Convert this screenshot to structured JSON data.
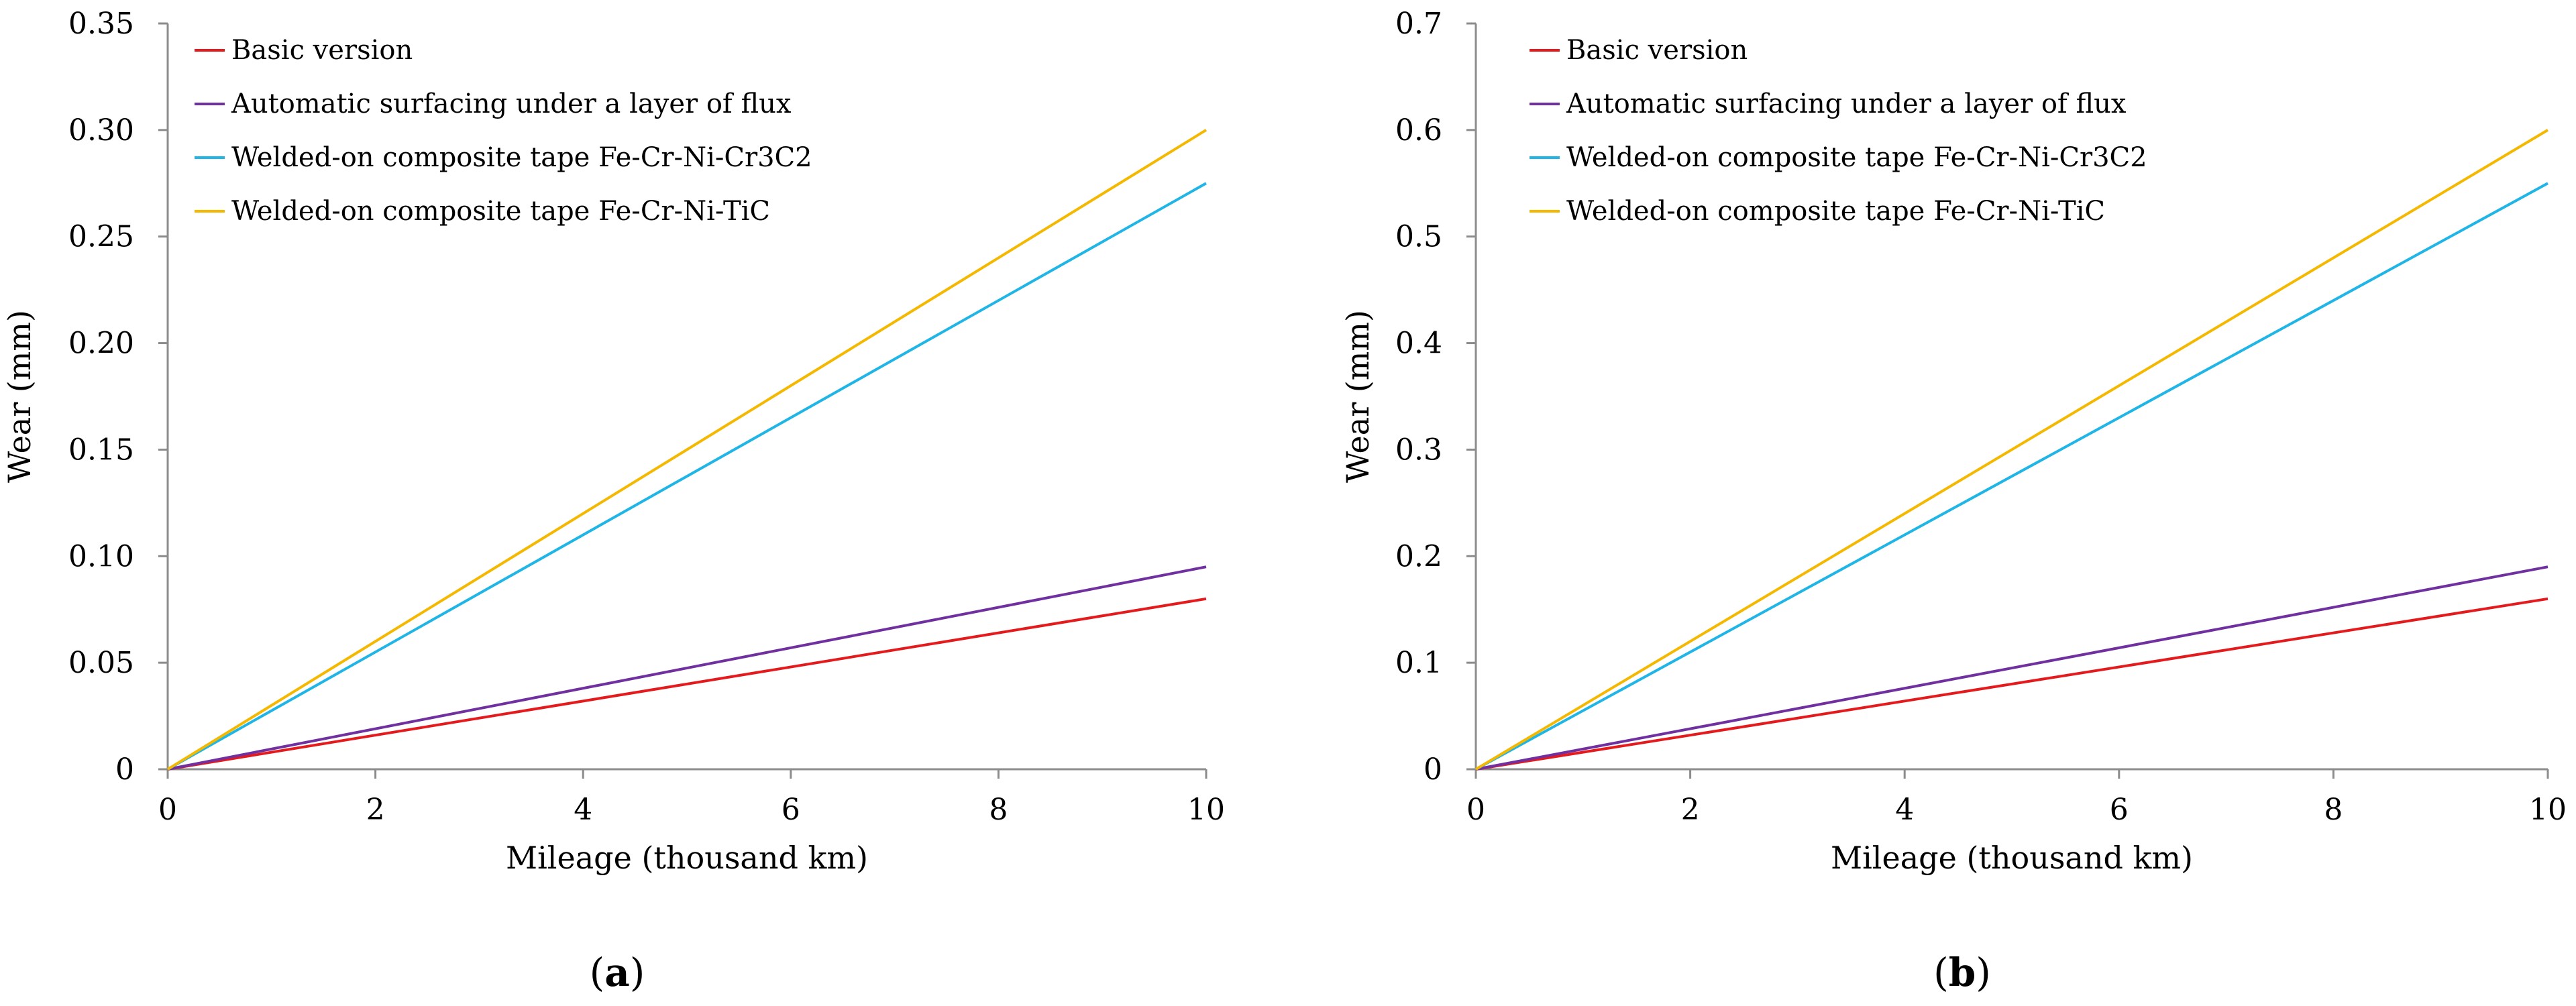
{
  "chart_data": [
    {
      "type": "line",
      "panel": "a",
      "xlabel": "Mileage (thousand km)",
      "ylabel": "Wear (mm)",
      "xlim": [
        0,
        10
      ],
      "ylim": [
        0,
        0.35
      ],
      "x_ticks": [
        "0",
        "2",
        "4",
        "6",
        "8",
        "10"
      ],
      "x_tick_values": [
        0,
        2,
        4,
        6,
        8,
        10
      ],
      "y_ticks": [
        "0",
        "0.05",
        "0.10",
        "0.15",
        "0.20",
        "0.25",
        "0.30",
        "0.35"
      ],
      "y_tick_values": [
        0,
        0.05,
        0.1,
        0.15,
        0.2,
        0.25,
        0.3,
        0.35
      ],
      "legend_position": "top-left",
      "series": [
        {
          "name": "Basic version",
          "color": "#e41a1c",
          "x": [
            0,
            10
          ],
          "values": [
            0,
            0.08
          ]
        },
        {
          "name": "Automatic surfacing under a layer of flux",
          "color": "#7030a0",
          "x": [
            0,
            10
          ],
          "values": [
            0,
            0.095
          ]
        },
        {
          "name": "Welded-on composite tape Fe-Cr-Ni-Cr3C2",
          "color": "#1fb5e6",
          "x": [
            0,
            10
          ],
          "values": [
            0,
            0.275
          ]
        },
        {
          "name": "Welded-on composite tape Fe-Cr-Ni-TiC",
          "color": "#f5b800",
          "x": [
            0,
            10
          ],
          "values": [
            0,
            0.3
          ]
        }
      ]
    },
    {
      "type": "line",
      "panel": "b",
      "xlabel": "Mileage (thousand km)",
      "ylabel": "Wear (mm)",
      "xlim": [
        0,
        10
      ],
      "ylim": [
        0,
        0.7
      ],
      "x_ticks": [
        "0",
        "2",
        "4",
        "6",
        "8",
        "10"
      ],
      "x_tick_values": [
        0,
        2,
        4,
        6,
        8,
        10
      ],
      "y_ticks": [
        "0",
        "0.1",
        "0.2",
        "0.3",
        "0.4",
        "0.5",
        "0.6",
        "0.7"
      ],
      "y_tick_values": [
        0,
        0.1,
        0.2,
        0.3,
        0.4,
        0.5,
        0.6,
        0.7
      ],
      "legend_position": "top-left",
      "series": [
        {
          "name": "Basic version",
          "color": "#e41a1c",
          "x": [
            0,
            10
          ],
          "values": [
            0,
            0.16
          ]
        },
        {
          "name": "Automatic surfacing under a layer of flux",
          "color": "#7030a0",
          "x": [
            0,
            10
          ],
          "values": [
            0,
            0.19
          ]
        },
        {
          "name": "Welded-on composite tape Fe-Cr-Ni-Cr3C2",
          "color": "#1fb5e6",
          "x": [
            0,
            10
          ],
          "values": [
            0,
            0.55
          ]
        },
        {
          "name": "Welded-on composite tape Fe-Cr-Ni-TiC",
          "color": "#f5b800",
          "x": [
            0,
            10
          ],
          "values": [
            0,
            0.6
          ]
        }
      ]
    }
  ],
  "panel_labels": [
    {
      "open": "(",
      "letter": "a",
      "close": ")"
    },
    {
      "open": "(",
      "letter": "b",
      "close": ")"
    }
  ]
}
